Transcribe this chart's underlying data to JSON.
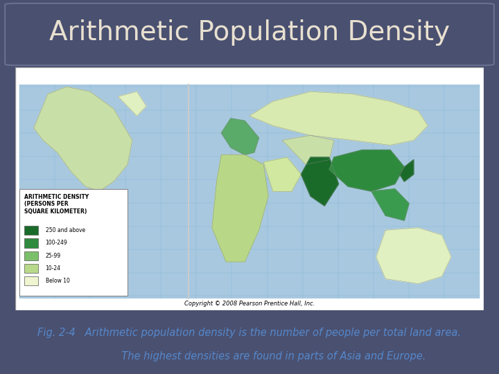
{
  "title": "Arithmetic Population Density",
  "title_color": "#e8e0d0",
  "title_fontsize": 28,
  "background_color": "#4a5070",
  "caption_line1": "Fig. 2-4   Arithmetic population density is the number of people per total land area.",
  "caption_line2": "               The highest densities are found in parts of Asia and Europe.",
  "caption_color": "#5588cc",
  "caption_fontsize": 10.5,
  "ocean_color": "#a8c8e0",
  "legend_title": "ARITHMETIC DENSITY\n(PERSONS PER\nSQUARE KILOMETER)",
  "legend_items": [
    {
      "label": "250 and above",
      "color": "#1a6b2a"
    },
    {
      "label": "100-249",
      "color": "#2e8b3e"
    },
    {
      "label": "25-99",
      "color": "#7bbf6a"
    },
    {
      "label": "10-24",
      "color": "#b8d98a"
    },
    {
      "label": "Below 10",
      "color": "#eef5d0"
    }
  ]
}
